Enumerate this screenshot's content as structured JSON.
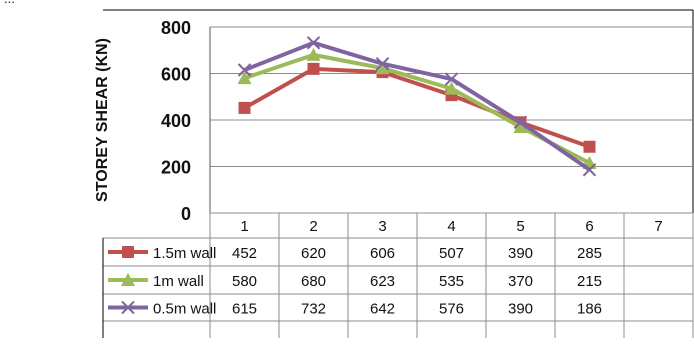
{
  "top_fragment": "...",
  "colors": {
    "s1": "#c0504d",
    "s2": "#9bbb59",
    "s3": "#8064a2",
    "grid": "#8c8c8c",
    "border": "#000000"
  },
  "chart_data": {
    "type": "line",
    "title": "",
    "xlabel": "",
    "ylabel": "STOREY SHEAR (KN)",
    "ylim": [
      0,
      800
    ],
    "yticks": [
      0,
      200,
      400,
      600,
      800
    ],
    "categories": [
      "1",
      "2",
      "3",
      "4",
      "5",
      "6",
      "7"
    ],
    "grid": true,
    "legend": "data-table-left",
    "series": [
      {
        "name": "1.5m wall",
        "marker": "square",
        "color": "#c0504d",
        "values": [
          452,
          620,
          606,
          507,
          390,
          285,
          null
        ]
      },
      {
        "name": "1m wall",
        "marker": "triangle",
        "color": "#9bbb59",
        "values": [
          580,
          680,
          623,
          535,
          370,
          215,
          null
        ]
      },
      {
        "name": "0.5m wall",
        "marker": "x",
        "color": "#8064a2",
        "values": [
          615,
          732,
          642,
          576,
          390,
          186,
          null
        ]
      }
    ]
  }
}
